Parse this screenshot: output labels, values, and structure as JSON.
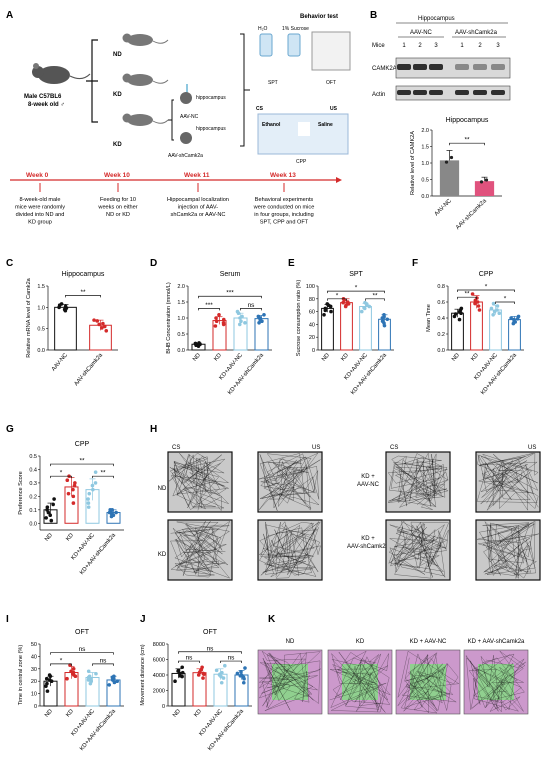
{
  "panel_letters": [
    "A",
    "B",
    "C",
    "D",
    "E",
    "F",
    "G",
    "H",
    "I",
    "J",
    "K"
  ],
  "colors": {
    "black": "#111111",
    "red": "#d42a2a",
    "lightblue": "#8fc8e0",
    "blue": "#2e74b5",
    "gray": "#888888",
    "pink": "#e0527d",
    "green": "#90d08f",
    "magenta": "#cc99cc",
    "timeline": "#d42a2a"
  },
  "A": {
    "mouse_label": [
      "Male C57BL6",
      "8-week old ♂"
    ],
    "nd": "ND",
    "kd1": "KD",
    "kd2": "KD",
    "hippocampus1": "hippocampus",
    "hippocampus2": "hippocampus",
    "aav_nc": "AAV-NC",
    "aav_sh": "AAV-shCamk2a",
    "behavior_title": "Behavior test",
    "h2o": "H₂O",
    "sucrose": "1% Sucrose",
    "spt": "SPT",
    "oft": "OFT",
    "cs": "CS",
    "us": "US",
    "ethanol": "Ethanol",
    "saline": "Saline",
    "cpp": "CPP",
    "weeks": [
      "Week 0",
      "Week 10",
      "Week 11",
      "Week 13"
    ],
    "week_desc": [
      [
        "8-week-old male",
        "mice were randomly",
        "divided into ND and",
        "KD group"
      ],
      [
        "Feeding for 10",
        "weeks on either",
        "ND or KD"
      ],
      [
        "Hippocampal localization",
        "injection of AAV-",
        "shCamk2a or AAV-NC"
      ],
      [
        "Behavioral experiments",
        "were conducted on mice",
        "in four groups, including",
        "SPT, CPP and OFT"
      ]
    ]
  },
  "B": {
    "header": "Hippocampus",
    "aav_nc": "AAV-NC",
    "aav_sh": "AAV-shCamk2a",
    "mice_label": "Mice",
    "lanes": [
      "1",
      "2",
      "3",
      "1",
      "2",
      "3"
    ],
    "camk2a": "CAMK2A",
    "actin": "Actin"
  },
  "B_chart": {
    "title": "Hippocampus",
    "ylabel": "Relative level of CAMK2A",
    "categories": [
      "AAV-NC",
      "AAV-shCamk2a"
    ],
    "values": [
      1.08,
      0.45
    ],
    "errors": [
      0.3,
      0.12
    ],
    "ylim": [
      0,
      2.0
    ],
    "yticks": [
      "0.0",
      "0.5",
      "1.0",
      "1.5",
      "2.0"
    ],
    "sig": "**"
  },
  "chart_data": [
    {
      "panel": "C",
      "type": "bar",
      "title": "Hippocampus",
      "ylabel": "Relative mRNA level of Camk2a",
      "categories": [
        "AAV-NC",
        "AAV-shCamk2a"
      ],
      "values": [
        1.0,
        0.58
      ],
      "errors": [
        0.07,
        0.12
      ],
      "ylim": [
        0,
        1.5
      ],
      "yticks": [
        "0.0",
        "0.5",
        "1.0",
        "1.5"
      ],
      "points": [
        [
          0.92,
          0.98,
          1.05,
          1.08,
          0.95,
          1.02,
          1.0
        ],
        [
          0.45,
          0.52,
          0.6,
          0.68,
          0.55,
          0.62,
          0.7
        ]
      ],
      "sig": [
        {
          "a": 0,
          "b": 1,
          "label": "**",
          "level": 1.28
        }
      ]
    },
    {
      "panel": "D",
      "type": "bar",
      "title": "Serum",
      "ylabel": "BHB Concentration (mmol/L)",
      "categories": [
        "ND",
        "KD",
        "KD+AAV-NC",
        "KD+AAV-shCamk2a"
      ],
      "values": [
        0.18,
        0.92,
        1.0,
        0.98
      ],
      "errors": [
        0.04,
        0.12,
        0.15,
        0.1
      ],
      "ylim": [
        0,
        2.0
      ],
      "yticks": [
        "0.0",
        "0.5",
        "1.0",
        "1.5",
        "2.0"
      ],
      "points": [
        [
          0.12,
          0.15,
          0.18,
          0.2,
          0.22,
          0.16,
          0.2
        ],
        [
          0.75,
          0.85,
          0.95,
          1.0,
          1.1,
          0.8,
          0.9
        ],
        [
          0.8,
          0.9,
          1.05,
          1.15,
          1.2,
          0.85,
          1.0
        ],
        [
          0.85,
          0.9,
          1.0,
          1.05,
          1.1,
          0.95,
          1.0
        ]
      ],
      "sig": [
        {
          "a": 0,
          "b": 1,
          "label": "***",
          "level": 1.3
        },
        {
          "a": 0,
          "b": 3,
          "label": "***",
          "level": 1.68
        },
        {
          "a": 2,
          "b": 3,
          "label": "ns",
          "level": 1.3
        }
      ]
    },
    {
      "panel": "E",
      "type": "bar",
      "title": "SPT",
      "ylabel": "Sucrose consumption ratio (%)",
      "categories": [
        "ND",
        "KD",
        "KD+AAV-NC",
        "KD+AAV-shCamk2a"
      ],
      "values": [
        65,
        74,
        68,
        48
      ],
      "errors": [
        6,
        6,
        5,
        7
      ],
      "ylim": [
        0,
        100
      ],
      "yticks": [
        "0",
        "20",
        "40",
        "60",
        "80",
        "100"
      ],
      "points": [
        [
          55,
          60,
          65,
          68,
          72,
          62,
          70
        ],
        [
          68,
          72,
          75,
          80,
          78,
          70,
          74
        ],
        [
          60,
          65,
          70,
          72,
          68,
          66,
          74
        ],
        [
          38,
          42,
          48,
          52,
          55,
          45,
          50
        ]
      ],
      "sig": [
        {
          "a": 0,
          "b": 1,
          "label": "*",
          "level": 80
        },
        {
          "a": 0,
          "b": 3,
          "label": "*",
          "level": 92
        },
        {
          "a": 2,
          "b": 3,
          "label": "**",
          "level": 80
        }
      ]
    },
    {
      "panel": "F",
      "type": "bar",
      "title": "CPP",
      "ylabel": "Mean Time",
      "categories": [
        "ND",
        "KD",
        "KD+AAV-NC",
        "KD+AAV-shCamk2a"
      ],
      "values": [
        0.46,
        0.6,
        0.5,
        0.38
      ],
      "errors": [
        0.05,
        0.08,
        0.06,
        0.04
      ],
      "ylim": [
        0,
        0.8
      ],
      "yticks": [
        "0.0",
        "0.2",
        "0.4",
        "0.6",
        "0.8"
      ],
      "points": [
        [
          0.38,
          0.42,
          0.45,
          0.48,
          0.5,
          0.52,
          0.46
        ],
        [
          0.5,
          0.55,
          0.6,
          0.65,
          0.7,
          0.58,
          0.62
        ],
        [
          0.44,
          0.48,
          0.5,
          0.55,
          0.58,
          0.46,
          0.52
        ],
        [
          0.33,
          0.35,
          0.38,
          0.4,
          0.42,
          0.36,
          0.39
        ]
      ],
      "sig": [
        {
          "a": 0,
          "b": 1,
          "label": "**",
          "level": 0.66
        },
        {
          "a": 0,
          "b": 3,
          "label": "*",
          "level": 0.75
        },
        {
          "a": 2,
          "b": 3,
          "label": "*",
          "level": 0.6
        }
      ]
    },
    {
      "panel": "G",
      "type": "bar",
      "title": "CPP",
      "ylabel": "Preference Score",
      "categories": [
        "ND",
        "KD",
        "KD+AAV-NC",
        "KD+AAV-shCamk2a"
      ],
      "values": [
        0.1,
        0.27,
        0.25,
        0.08
      ],
      "errors": [
        0.05,
        0.07,
        0.08,
        0.02
      ],
      "ylim": [
        -0.05,
        0.5
      ],
      "yticks": [
        "0.0",
        "0.1",
        "0.2",
        "0.3",
        "0.4",
        "0.5"
      ],
      "points": [
        [
          0.02,
          0.06,
          0.1,
          0.14,
          0.18,
          0.08,
          0.04,
          0.12
        ],
        [
          0.15,
          0.2,
          0.25,
          0.3,
          0.35,
          0.28,
          0.22,
          0.32
        ],
        [
          0.12,
          0.18,
          0.25,
          0.3,
          0.38,
          0.22,
          0.28,
          0.15
        ],
        [
          0.05,
          0.06,
          0.08,
          0.1,
          0.09,
          0.07,
          0.08,
          0.1
        ]
      ],
      "sig": [
        {
          "a": 0,
          "b": 1,
          "label": "*",
          "level": 0.35
        },
        {
          "a": 0,
          "b": 3,
          "label": "**",
          "level": 0.44
        },
        {
          "a": 2,
          "b": 3,
          "label": "**",
          "level": 0.35
        }
      ]
    },
    {
      "panel": "I",
      "type": "bar",
      "title": "OFT",
      "ylabel": "Time in central zone (%)",
      "categories": [
        "ND",
        "KD",
        "KD+AAV-NC",
        "KD+AAV-shCamk2a"
      ],
      "values": [
        20,
        27,
        23,
        21
      ],
      "errors": [
        4,
        5,
        4,
        3
      ],
      "ylim": [
        0,
        50
      ],
      "yticks": [
        "0",
        "10",
        "20",
        "30",
        "40",
        "50"
      ],
      "points": [
        [
          12,
          16,
          20,
          22,
          25,
          18,
          24,
          21
        ],
        [
          22,
          25,
          28,
          30,
          33,
          24,
          27,
          26
        ],
        [
          18,
          20,
          23,
          26,
          28,
          21,
          24,
          22
        ],
        [
          17,
          19,
          21,
          23,
          24,
          20,
          22,
          21
        ]
      ],
      "sig": [
        {
          "a": 0,
          "b": 1,
          "label": "*",
          "level": 34
        },
        {
          "a": 0,
          "b": 3,
          "label": "ns",
          "level": 43
        },
        {
          "a": 2,
          "b": 3,
          "label": "ns",
          "level": 34
        }
      ]
    },
    {
      "panel": "J",
      "type": "bar",
      "title": "OFT",
      "ylabel": "Movement distance (cm)",
      "categories": [
        "ND",
        "KD",
        "KD+AAV-NC",
        "KD+AAV-shCamk2a"
      ],
      "values": [
        4200,
        4300,
        4100,
        4000
      ],
      "errors": [
        600,
        500,
        700,
        600
      ],
      "ylim": [
        0,
        8000
      ],
      "yticks": [
        "0",
        "2000",
        "4000",
        "6000",
        "8000"
      ],
      "points": [
        [
          3200,
          3800,
          4200,
          4600,
          5000,
          3900,
          4500,
          4300
        ],
        [
          3600,
          4000,
          4300,
          4700,
          5000,
          4200,
          4400,
          4100
        ],
        [
          3000,
          3600,
          4100,
          4600,
          5200,
          3800,
          4300,
          4000
        ],
        [
          3000,
          3500,
          4000,
          4400,
          4900,
          3700,
          4200,
          3900
        ]
      ],
      "sig": [
        {
          "a": 0,
          "b": 1,
          "label": "ns",
          "level": 5800
        },
        {
          "a": 0,
          "b": 3,
          "label": "ns",
          "level": 7000
        },
        {
          "a": 2,
          "b": 3,
          "label": "ns",
          "level": 5800
        }
      ]
    }
  ],
  "H": {
    "cs": "CS",
    "us": "US",
    "groups": [
      "ND",
      "KD",
      "KD +\nAAV-NC",
      "KD +\nAAV-shCamk2a"
    ]
  },
  "K": {
    "labels": [
      "ND",
      "KD",
      "KD + AAV-NC",
      "KD + AAV-shCamk2a"
    ]
  }
}
